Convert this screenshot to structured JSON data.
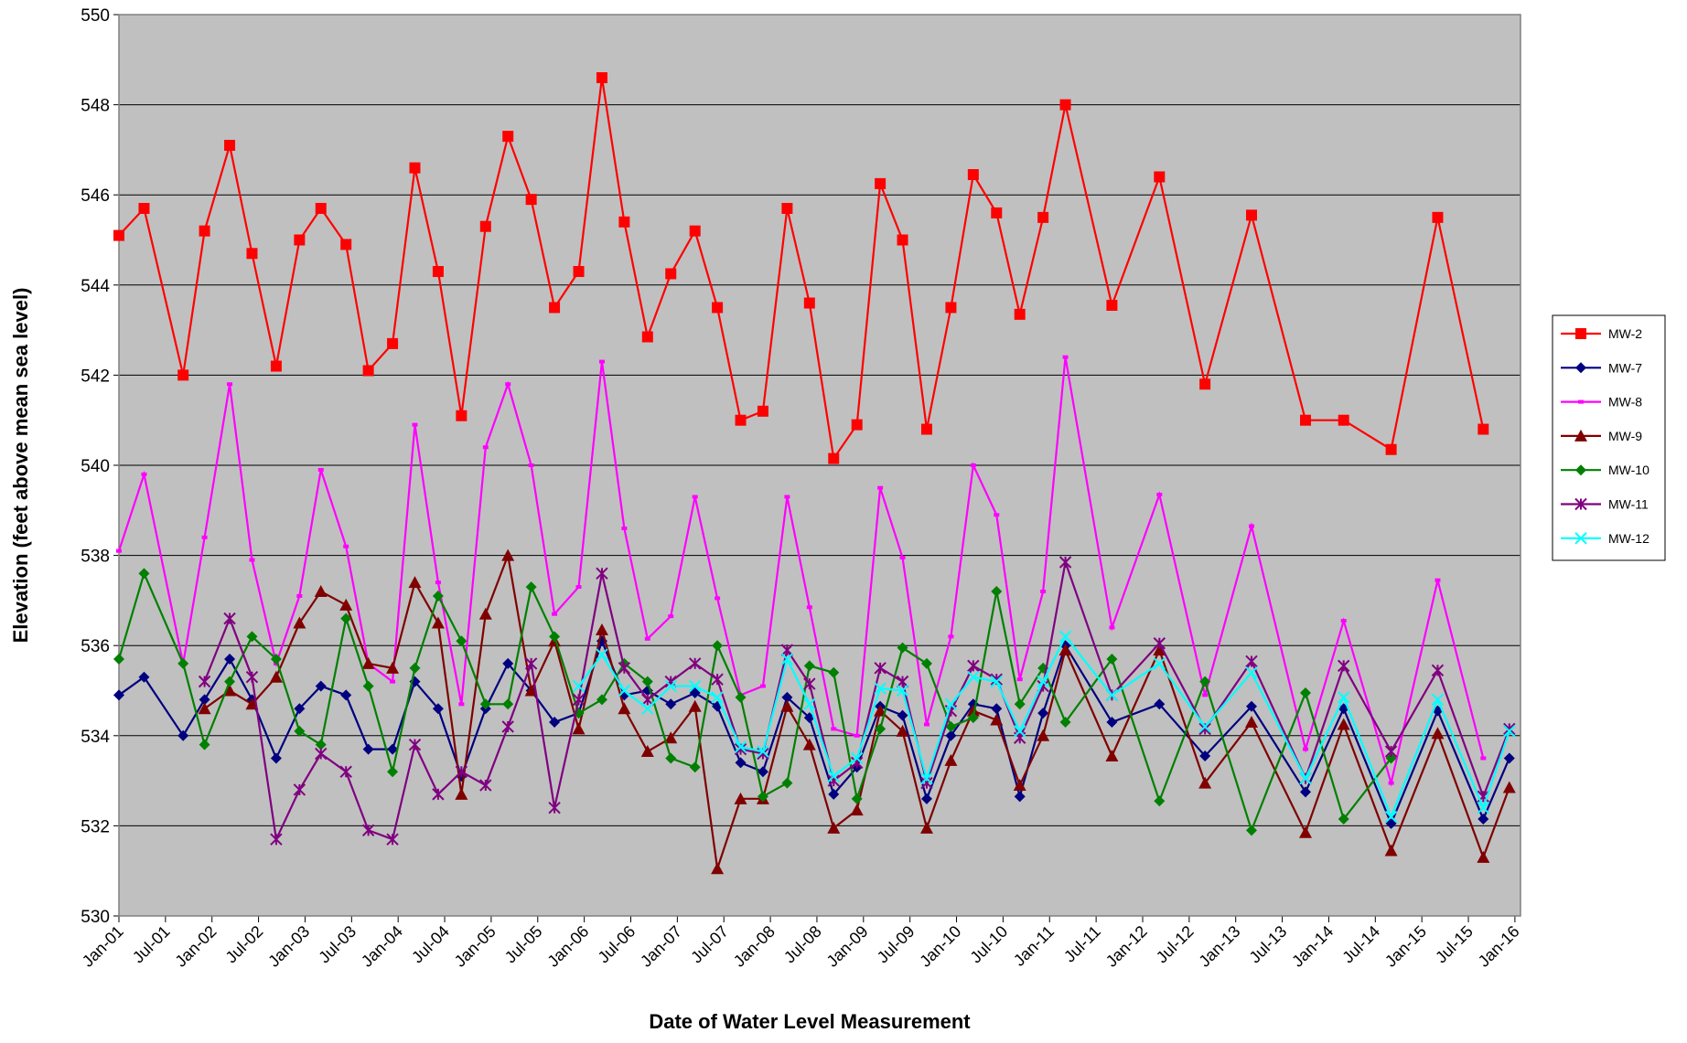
{
  "chart_data": {
    "type": "line",
    "x_label": "Date of Water Level Measurement",
    "y_label": "Elevation (feet above mean sea level)",
    "x": [
      2001.0,
      2001.27,
      2001.69,
      2001.92,
      2002.19,
      2002.43,
      2002.69,
      2002.94,
      2003.17,
      2003.44,
      2003.68,
      2003.94,
      2004.18,
      2004.43,
      2004.68,
      2004.94,
      2005.18,
      2005.43,
      2005.68,
      2005.94,
      2006.19,
      2006.43,
      2006.68,
      2006.93,
      2007.19,
      2007.43,
      2007.68,
      2007.92,
      2008.18,
      2008.42,
      2008.68,
      2008.93,
      2009.18,
      2009.42,
      2009.68,
      2009.94,
      2010.18,
      2010.43,
      2010.68,
      2010.93,
      2011.17,
      2011.67,
      2012.18,
      2012.67,
      2013.17,
      2013.75,
      2014.16,
      2014.67,
      2015.17,
      2015.66,
      2015.94
    ],
    "xlim": [
      2001,
      2016.06
    ],
    "xticks": [
      {
        "value": 2001,
        "label": "Jan-01"
      },
      {
        "value": 2001.5,
        "label": "Jul-01"
      },
      {
        "value": 2002,
        "label": "Jan-02"
      },
      {
        "value": 2002.5,
        "label": "Jul-02"
      },
      {
        "value": 2003,
        "label": "Jan-03"
      },
      {
        "value": 2003.5,
        "label": "Jul-03"
      },
      {
        "value": 2004,
        "label": "Jan-04"
      },
      {
        "value": 2004.5,
        "label": "Jul-04"
      },
      {
        "value": 2005,
        "label": "Jan-05"
      },
      {
        "value": 2005.5,
        "label": "Jul-05"
      },
      {
        "value": 2006,
        "label": "Jan-06"
      },
      {
        "value": 2006.5,
        "label": "Jul-06"
      },
      {
        "value": 2007,
        "label": "Jan-07"
      },
      {
        "value": 2007.5,
        "label": "Jul-07"
      },
      {
        "value": 2008,
        "label": "Jan-08"
      },
      {
        "value": 2008.5,
        "label": "Jul-08"
      },
      {
        "value": 2009,
        "label": "Jan-09"
      },
      {
        "value": 2009.5,
        "label": "Jul-09"
      },
      {
        "value": 2010,
        "label": "Jan-10"
      },
      {
        "value": 2010.5,
        "label": "Jul-10"
      },
      {
        "value": 2011,
        "label": "Jan-11"
      },
      {
        "value": 2011.5,
        "label": "Jul-11"
      },
      {
        "value": 2012,
        "label": "Jan-12"
      },
      {
        "value": 2012.5,
        "label": "Jul-12"
      },
      {
        "value": 2013,
        "label": "Jan-13"
      },
      {
        "value": 2013.5,
        "label": "Jul-13"
      },
      {
        "value": 2014,
        "label": "Jan-14"
      },
      {
        "value": 2014.5,
        "label": "Jul-14"
      },
      {
        "value": 2015,
        "label": "Jan-15"
      },
      {
        "value": 2015.5,
        "label": "Jul-15"
      },
      {
        "value": 2016,
        "label": "Jan-16"
      }
    ],
    "ylim": [
      530,
      550
    ],
    "yticks": [
      530,
      532,
      534,
      536,
      538,
      540,
      542,
      544,
      546,
      548,
      550
    ],
    "grid": true,
    "legend": "right",
    "series": [
      {
        "name": "MW-2",
        "color": "#ff0000",
        "marker": "square",
        "values": [
          545.1,
          545.7,
          542.0,
          545.2,
          547.1,
          544.7,
          542.2,
          545.0,
          545.7,
          544.9,
          542.1,
          542.7,
          546.6,
          544.3,
          541.1,
          545.3,
          547.3,
          545.9,
          543.5,
          544.3,
          548.6,
          545.4,
          542.85,
          544.25,
          545.2,
          543.5,
          541.0,
          541.2,
          545.7,
          543.6,
          540.15,
          540.9,
          546.25,
          545.0,
          540.8,
          543.5,
          546.45,
          545.6,
          543.35,
          545.5,
          548.0,
          543.55,
          546.4,
          541.8,
          545.55,
          541.0,
          541.0,
          540.35,
          545.5,
          540.8,
          null
        ]
      },
      {
        "name": "MW-7",
        "color": "#000080",
        "marker": "diamond",
        "values": [
          534.9,
          535.3,
          534.0,
          534.8,
          535.7,
          534.8,
          533.5,
          534.6,
          535.1,
          534.9,
          533.7,
          533.7,
          535.2,
          534.6,
          533.1,
          534.6,
          535.6,
          535.0,
          534.3,
          534.5,
          536.1,
          534.9,
          535.0,
          534.7,
          534.95,
          534.65,
          533.4,
          533.2,
          534.85,
          534.4,
          532.7,
          533.3,
          534.65,
          534.45,
          532.6,
          534.0,
          534.7,
          534.6,
          532.65,
          534.5,
          536.0,
          534.3,
          534.7,
          533.55,
          534.65,
          532.75,
          534.6,
          532.05,
          534.55,
          532.15,
          533.5
        ]
      },
      {
        "name": "MW-8",
        "color": "#ff00ff",
        "marker": "dash",
        "values": [
          538.1,
          539.8,
          535.6,
          538.4,
          541.8,
          537.9,
          535.6,
          537.1,
          539.9,
          538.2,
          535.6,
          535.2,
          540.9,
          537.4,
          534.7,
          540.4,
          541.8,
          540.0,
          536.7,
          537.3,
          542.3,
          538.6,
          536.15,
          536.65,
          539.3,
          537.05,
          534.9,
          535.1,
          539.3,
          536.85,
          534.15,
          534.0,
          539.5,
          537.95,
          534.25,
          536.2,
          540.0,
          538.9,
          535.25,
          537.2,
          542.4,
          536.4,
          539.35,
          534.9,
          538.65,
          533.7,
          536.55,
          532.95,
          537.45,
          533.5,
          null
        ]
      },
      {
        "name": "MW-9",
        "color": "#800000",
        "marker": "triangle",
        "values": [
          null,
          null,
          null,
          534.6,
          535.0,
          534.7,
          535.3,
          536.5,
          537.2,
          536.9,
          535.6,
          535.5,
          537.4,
          536.5,
          532.7,
          536.7,
          538.0,
          535.0,
          536.1,
          534.15,
          536.35,
          534.6,
          533.65,
          533.95,
          534.65,
          531.05,
          532.6,
          532.6,
          534.65,
          533.8,
          531.95,
          532.35,
          534.55,
          534.1,
          531.95,
          533.45,
          534.55,
          534.35,
          532.9,
          534.0,
          535.9,
          533.55,
          535.9,
          532.95,
          534.3,
          531.85,
          534.25,
          531.45,
          534.05,
          531.3,
          532.85
        ]
      },
      {
        "name": "MW-10",
        "color": "#008000",
        "marker": "diamond",
        "values": [
          535.7,
          537.6,
          535.6,
          533.8,
          535.2,
          536.2,
          535.7,
          534.1,
          533.8,
          536.6,
          535.1,
          533.2,
          535.5,
          537.1,
          536.1,
          534.7,
          534.7,
          537.3,
          536.2,
          534.5,
          534.8,
          535.6,
          535.2,
          533.5,
          533.3,
          536.0,
          534.85,
          532.65,
          532.95,
          535.55,
          535.4,
          532.6,
          534.15,
          535.95,
          535.6,
          534.2,
          534.4,
          537.2,
          534.7,
          535.5,
          534.3,
          535.7,
          532.55,
          535.2,
          531.9,
          534.95,
          532.15,
          533.5,
          null,
          null,
          null
        ]
      },
      {
        "name": "MW-11",
        "color": "#800080",
        "marker": "star",
        "values": [
          null,
          null,
          null,
          535.2,
          536.6,
          535.3,
          531.7,
          532.8,
          533.6,
          533.2,
          531.9,
          531.7,
          533.8,
          532.7,
          533.2,
          532.9,
          534.2,
          535.6,
          532.4,
          534.8,
          537.6,
          535.5,
          534.8,
          535.2,
          535.6,
          535.25,
          533.7,
          533.6,
          535.9,
          535.15,
          533.0,
          533.4,
          535.5,
          535.2,
          532.95,
          534.55,
          535.55,
          535.25,
          533.95,
          535.1,
          537.85,
          534.9,
          536.05,
          534.15,
          535.65,
          533.05,
          535.55,
          533.65,
          535.45,
          532.65,
          534.15
        ]
      },
      {
        "name": "MW-12",
        "color": "#00ffff",
        "marker": "x",
        "values": [
          null,
          null,
          null,
          null,
          null,
          null,
          null,
          null,
          null,
          null,
          null,
          null,
          null,
          null,
          null,
          null,
          null,
          null,
          null,
          535.1,
          535.8,
          535.0,
          534.6,
          535.1,
          535.1,
          534.85,
          533.75,
          533.65,
          535.7,
          534.7,
          533.1,
          533.5,
          535.05,
          535.0,
          533.05,
          534.7,
          535.3,
          535.2,
          534.1,
          535.2,
          536.2,
          534.9,
          535.6,
          534.2,
          535.4,
          533.05,
          534.85,
          532.2,
          534.8,
          532.4,
          534.1
        ]
      }
    ]
  }
}
